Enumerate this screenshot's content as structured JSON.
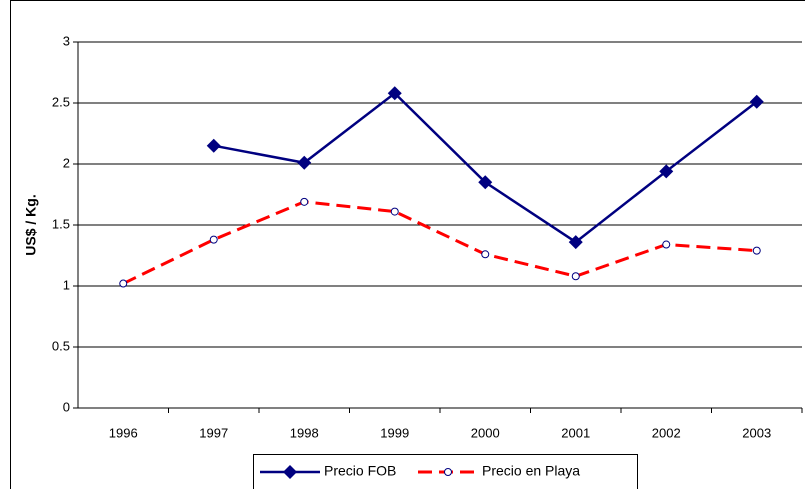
{
  "chart_data": {
    "type": "line",
    "y_label": "US$ / Kg.",
    "categories": [
      "1996",
      "1997",
      "1998",
      "1999",
      "2000",
      "2001",
      "2002",
      "2003"
    ],
    "series": [
      {
        "name": "Precio FOB",
        "color": "#000080",
        "line_style": "solid",
        "marker": "diamond",
        "values": [
          null,
          2.15,
          2.01,
          2.58,
          1.85,
          1.36,
          1.94,
          2.51
        ]
      },
      {
        "name": "Precio en Playa",
        "color": "#ff0000",
        "line_style": "dashed",
        "marker": "circle",
        "values": [
          1.02,
          1.38,
          1.69,
          1.61,
          1.26,
          1.08,
          1.34,
          1.29
        ]
      }
    ],
    "ylim": [
      0,
      3
    ],
    "yticks": [
      0,
      0.5,
      1,
      1.5,
      2,
      2.5,
      3
    ],
    "grid": true,
    "legend": "bottom"
  }
}
